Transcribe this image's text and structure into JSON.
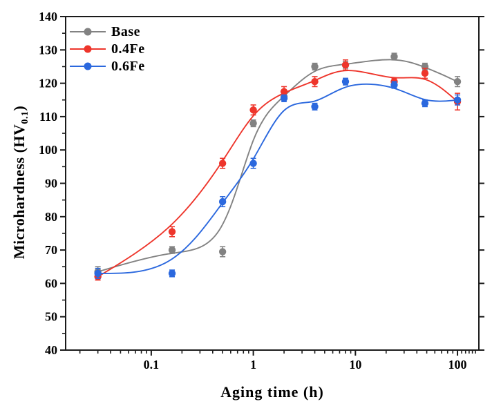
{
  "chart_data": {
    "type": "scatter",
    "x": [
      0.03,
      0.16,
      0.5,
      1,
      2,
      4,
      8,
      24,
      48,
      100
    ],
    "xscale": "log",
    "xlim": [
      0.0145,
      162
    ],
    "ylim": [
      40,
      140
    ],
    "grid": false,
    "xlabel": "Aging time (h)",
    "ylabel": "Microhardness (HV0.1)",
    "ylabel_parts": {
      "pre": "Microhardness (HV",
      "sub": "0.1",
      "post": ")"
    },
    "xticks": {
      "values": [
        0.1,
        1,
        10,
        100
      ],
      "labels": [
        "0.1",
        "1",
        "10",
        "100"
      ]
    },
    "yticks": {
      "values": [
        40,
        50,
        60,
        70,
        80,
        90,
        100,
        110,
        120,
        130,
        140
      ],
      "labels": [
        "40",
        "50",
        "60",
        "70",
        "80",
        "90",
        "100",
        "110",
        "120",
        "130",
        "140"
      ],
      "minor_step": 5
    },
    "legend_position": "top-left",
    "series": [
      {
        "name": "Base",
        "color": "#828282",
        "marker": "circle",
        "line": "b-spline",
        "values": [
          63.5,
          70,
          69.5,
          108,
          116,
          125,
          125.5,
          128,
          125,
          120.5
        ],
        "errors": [
          1.5,
          1.0,
          1.5,
          1.0,
          1.0,
          1.0,
          1.0,
          1.0,
          1.0,
          1.5
        ]
      },
      {
        "name": "0.4Fe",
        "color": "#ee352b",
        "marker": "circle",
        "line": "b-spline",
        "values": [
          62,
          75.5,
          96,
          112,
          117.5,
          120.5,
          125.5,
          120.5,
          123,
          114.5
        ],
        "errors": [
          1.0,
          1.5,
          1.5,
          1.5,
          1.5,
          1.5,
          1.5,
          1.0,
          1.5,
          2.5
        ]
      },
      {
        "name": "0.6Fe",
        "color": "#2b68de",
        "marker": "circle",
        "line": "b-spline",
        "values": [
          63,
          63,
          84.5,
          96,
          115.5,
          113,
          120.5,
          119.5,
          114,
          115
        ],
        "errors": [
          1.5,
          1.0,
          1.5,
          1.5,
          1.0,
          1.0,
          1.0,
          1.0,
          1.0,
          1.5
        ]
      }
    ],
    "axis_color": "#1a1a1a"
  }
}
